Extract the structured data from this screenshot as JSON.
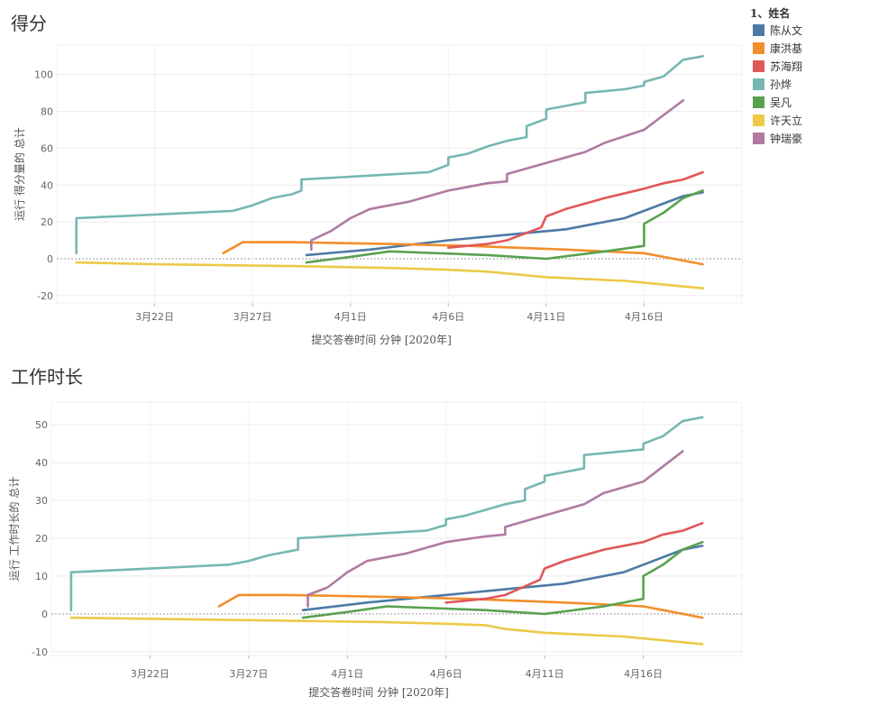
{
  "legend": {
    "title": "1、姓名",
    "entries": [
      {
        "name": "陈从文",
        "color": "#4e79a7"
      },
      {
        "name": "康洪基",
        "color": "#f28e2b"
      },
      {
        "name": "苏海翔",
        "color": "#e15759"
      },
      {
        "name": "孙烨",
        "color": "#76b7b2"
      },
      {
        "name": "吴凡",
        "color": "#59a14f"
      },
      {
        "name": "许天立",
        "color": "#edc948"
      },
      {
        "name": "钟瑞豪",
        "color": "#b07aa1"
      }
    ]
  },
  "chart_data": [
    {
      "type": "line",
      "title": "得分",
      "xlabel": "提交答卷时间 分钟 [2020年]",
      "ylabel": "运行 得分量的 总计",
      "x_ticks": [
        "3月22日",
        "3月27日",
        "4月1日",
        "4月6日",
        "4月11日",
        "4月16日"
      ],
      "y_ticks": [
        -20,
        0,
        20,
        40,
        60,
        80,
        100
      ],
      "ylim": [
        -24,
        116
      ],
      "xlim": [
        "2020-03-17",
        "2020-04-21"
      ],
      "grid": true,
      "series": [
        {
          "name": "陈从文",
          "color": "#4e79a7",
          "points": [
            [
              "2020-03-29T18:00",
              2
            ],
            [
              "2020-04-02",
              5
            ],
            [
              "2020-04-06",
              10
            ],
            [
              "2020-04-09",
              13
            ],
            [
              "2020-04-12",
              16
            ],
            [
              "2020-04-13",
              18
            ],
            [
              "2020-04-15",
              22
            ],
            [
              "2020-04-18",
              34
            ],
            [
              "2020-04-19",
              36
            ]
          ]
        },
        {
          "name": "康洪基",
          "color": "#f28e2b",
          "points": [
            [
              "2020-03-25T12:00",
              3
            ],
            [
              "2020-03-26T12:00",
              9
            ],
            [
              "2020-03-29",
              9
            ],
            [
              "2020-04-03",
              8
            ],
            [
              "2020-04-07",
              7
            ],
            [
              "2020-04-12",
              5
            ],
            [
              "2020-04-16",
              3
            ],
            [
              "2020-04-17",
              1
            ],
            [
              "2020-04-19",
              -3
            ]
          ]
        },
        {
          "name": "苏海翔",
          "color": "#e15759",
          "points": [
            [
              "2020-04-06",
              6
            ],
            [
              "2020-04-08",
              8
            ],
            [
              "2020-04-09",
              10
            ],
            [
              "2020-04-10T18:00",
              17
            ],
            [
              "2020-04-11",
              23
            ],
            [
              "2020-04-12",
              27
            ],
            [
              "2020-04-14",
              33
            ],
            [
              "2020-04-16",
              38
            ],
            [
              "2020-04-17",
              41
            ],
            [
              "2020-04-18",
              43
            ],
            [
              "2020-04-19",
              47
            ]
          ]
        },
        {
          "name": "孙烨",
          "color": "#76b7b2",
          "points": [
            [
              "2020-03-18",
              3
            ],
            [
              "2020-03-18",
              22
            ],
            [
              "2020-03-26",
              26
            ],
            [
              "2020-03-27",
              29
            ],
            [
              "2020-03-28",
              33
            ],
            [
              "2020-03-29",
              35
            ],
            [
              "2020-03-29T12:00",
              37
            ],
            [
              "2020-03-29T12:00",
              43
            ],
            [
              "2020-04-05",
              47
            ],
            [
              "2020-04-06",
              51
            ],
            [
              "2020-04-06",
              55
            ],
            [
              "2020-04-07",
              57
            ],
            [
              "2020-04-08",
              61
            ],
            [
              "2020-04-09",
              64
            ],
            [
              "2020-04-10",
              66
            ],
            [
              "2020-04-10",
              72
            ],
            [
              "2020-04-11",
              76
            ],
            [
              "2020-04-11",
              81
            ],
            [
              "2020-04-12",
              83
            ],
            [
              "2020-04-13",
              85
            ],
            [
              "2020-04-13",
              90
            ],
            [
              "2020-04-15",
              92
            ],
            [
              "2020-04-16",
              94
            ],
            [
              "2020-04-16",
              96
            ],
            [
              "2020-04-17",
              99
            ],
            [
              "2020-04-18",
              108
            ],
            [
              "2020-04-19",
              110
            ]
          ]
        },
        {
          "name": "吴凡",
          "color": "#59a14f",
          "points": [
            [
              "2020-03-29T18:00",
              -2
            ],
            [
              "2020-04-01",
              1
            ],
            [
              "2020-04-03",
              4
            ],
            [
              "2020-04-08",
              2
            ],
            [
              "2020-04-11",
              0
            ],
            [
              "2020-04-14",
              4
            ],
            [
              "2020-04-16",
              7
            ],
            [
              "2020-04-16",
              19
            ],
            [
              "2020-04-17",
              25
            ],
            [
              "2020-04-18",
              33
            ],
            [
              "2020-04-19",
              37
            ]
          ]
        },
        {
          "name": "许天立",
          "color": "#edc948",
          "points": [
            [
              "2020-03-18",
              -2
            ],
            [
              "2020-03-22",
              -3
            ],
            [
              "2020-03-29",
              -4
            ],
            [
              "2020-04-03",
              -5
            ],
            [
              "2020-04-06",
              -6
            ],
            [
              "2020-04-08",
              -7
            ],
            [
              "2020-04-09",
              -8
            ],
            [
              "2020-04-11",
              -10
            ],
            [
              "2020-04-15",
              -12
            ],
            [
              "2020-04-17",
              -14
            ],
            [
              "2020-04-19",
              -16
            ]
          ]
        },
        {
          "name": "钟瑞豪",
          "color": "#b07aa1",
          "points": [
            [
              "2020-03-30",
              5
            ],
            [
              "2020-03-30",
              10
            ],
            [
              "2020-03-31",
              15
            ],
            [
              "2020-04-01",
              22
            ],
            [
              "2020-04-02",
              27
            ],
            [
              "2020-04-04",
              31
            ],
            [
              "2020-04-06",
              37
            ],
            [
              "2020-04-08",
              41
            ],
            [
              "2020-04-09",
              42
            ],
            [
              "2020-04-09",
              46
            ],
            [
              "2020-04-11",
              52
            ],
            [
              "2020-04-13",
              58
            ],
            [
              "2020-04-14",
              63
            ],
            [
              "2020-04-16",
              70
            ],
            [
              "2020-04-17",
              78
            ],
            [
              "2020-04-18",
              86
            ]
          ]
        }
      ]
    },
    {
      "type": "line",
      "title": "工作时长",
      "xlabel": "提交答卷时间 分钟 [2020年]",
      "ylabel": "运行 工作时长的 总计",
      "x_ticks": [
        "3月22日",
        "3月27日",
        "4月1日",
        "4月6日",
        "4月11日",
        "4月16日"
      ],
      "y_ticks": [
        -10,
        0,
        10,
        20,
        30,
        40,
        50
      ],
      "ylim": [
        -11,
        56
      ],
      "xlim": [
        "2020-03-17",
        "2020-04-21"
      ],
      "grid": true,
      "series": [
        {
          "name": "陈从文",
          "color": "#4e79a7",
          "points": [
            [
              "2020-03-29T18:00",
              1
            ],
            [
              "2020-04-02",
              3
            ],
            [
              "2020-04-06",
              5
            ],
            [
              "2020-04-09",
              6.5
            ],
            [
              "2020-04-12",
              8
            ],
            [
              "2020-04-13",
              9
            ],
            [
              "2020-04-15",
              11
            ],
            [
              "2020-04-18",
              17
            ],
            [
              "2020-04-19",
              18
            ]
          ]
        },
        {
          "name": "康洪基",
          "color": "#f28e2b",
          "points": [
            [
              "2020-03-25T12:00",
              2
            ],
            [
              "2020-03-26T12:00",
              5
            ],
            [
              "2020-03-29",
              5
            ],
            [
              "2020-04-03",
              4.5
            ],
            [
              "2020-04-07",
              4
            ],
            [
              "2020-04-12",
              3
            ],
            [
              "2020-04-16",
              2
            ],
            [
              "2020-04-17",
              1
            ],
            [
              "2020-04-19",
              -1
            ]
          ]
        },
        {
          "name": "苏海翔",
          "color": "#e15759",
          "points": [
            [
              "2020-04-06",
              3
            ],
            [
              "2020-04-08",
              4
            ],
            [
              "2020-04-09",
              5
            ],
            [
              "2020-04-10T18:00",
              9
            ],
            [
              "2020-04-11",
              12
            ],
            [
              "2020-04-12",
              14
            ],
            [
              "2020-04-14",
              17
            ],
            [
              "2020-04-16",
              19
            ],
            [
              "2020-04-17",
              21
            ],
            [
              "2020-04-18",
              22
            ],
            [
              "2020-04-19",
              24
            ]
          ]
        },
        {
          "name": "孙烨",
          "color": "#76b7b2",
          "points": [
            [
              "2020-03-18",
              1
            ],
            [
              "2020-03-18",
              11
            ],
            [
              "2020-03-26",
              13
            ],
            [
              "2020-03-27",
              14
            ],
            [
              "2020-03-28",
              15.5
            ],
            [
              "2020-03-29",
              16.5
            ],
            [
              "2020-03-29T12:00",
              17
            ],
            [
              "2020-03-29T12:00",
              20
            ],
            [
              "2020-04-05",
              22
            ],
            [
              "2020-04-06",
              23.5
            ],
            [
              "2020-04-06",
              25
            ],
            [
              "2020-04-07",
              26
            ],
            [
              "2020-04-08",
              27.5
            ],
            [
              "2020-04-09",
              29
            ],
            [
              "2020-04-10",
              30
            ],
            [
              "2020-04-10",
              33
            ],
            [
              "2020-04-11",
              35
            ],
            [
              "2020-04-11",
              36.5
            ],
            [
              "2020-04-12",
              37.5
            ],
            [
              "2020-04-13",
              38.5
            ],
            [
              "2020-04-13",
              42
            ],
            [
              "2020-04-15",
              43
            ],
            [
              "2020-04-16",
              43.5
            ],
            [
              "2020-04-16",
              45
            ],
            [
              "2020-04-17",
              47
            ],
            [
              "2020-04-18",
              51
            ],
            [
              "2020-04-19",
              52
            ]
          ]
        },
        {
          "name": "吴凡",
          "color": "#59a14f",
          "points": [
            [
              "2020-03-29T18:00",
              -1
            ],
            [
              "2020-04-01",
              0.5
            ],
            [
              "2020-04-03",
              2
            ],
            [
              "2020-04-08",
              1
            ],
            [
              "2020-04-11",
              0
            ],
            [
              "2020-04-14",
              2
            ],
            [
              "2020-04-16",
              4
            ],
            [
              "2020-04-16",
              10
            ],
            [
              "2020-04-17",
              13
            ],
            [
              "2020-04-18",
              17
            ],
            [
              "2020-04-19",
              19
            ]
          ]
        },
        {
          "name": "许天立",
          "color": "#edc948",
          "points": [
            [
              "2020-03-18",
              -1
            ],
            [
              "2020-03-22",
              -1.3
            ],
            [
              "2020-03-29",
              -1.8
            ],
            [
              "2020-04-03",
              -2.2
            ],
            [
              "2020-04-06",
              -2.6
            ],
            [
              "2020-04-08",
              -3
            ],
            [
              "2020-04-09",
              -4
            ],
            [
              "2020-04-11",
              -5
            ],
            [
              "2020-04-15",
              -6
            ],
            [
              "2020-04-17",
              -7
            ],
            [
              "2020-04-19",
              -8
            ]
          ]
        },
        {
          "name": "钟瑞豪",
          "color": "#b07aa1",
          "points": [
            [
              "2020-03-30",
              2
            ],
            [
              "2020-03-30",
              5
            ],
            [
              "2020-03-31",
              7
            ],
            [
              "2020-04-01",
              11
            ],
            [
              "2020-04-02",
              14
            ],
            [
              "2020-04-04",
              16
            ],
            [
              "2020-04-06",
              19
            ],
            [
              "2020-04-08",
              20.5
            ],
            [
              "2020-04-09",
              21
            ],
            [
              "2020-04-09",
              23
            ],
            [
              "2020-04-11",
              26
            ],
            [
              "2020-04-13",
              29
            ],
            [
              "2020-04-14",
              32
            ],
            [
              "2020-04-16",
              35
            ],
            [
              "2020-04-17",
              39
            ],
            [
              "2020-04-18",
              43
            ]
          ]
        }
      ]
    }
  ]
}
